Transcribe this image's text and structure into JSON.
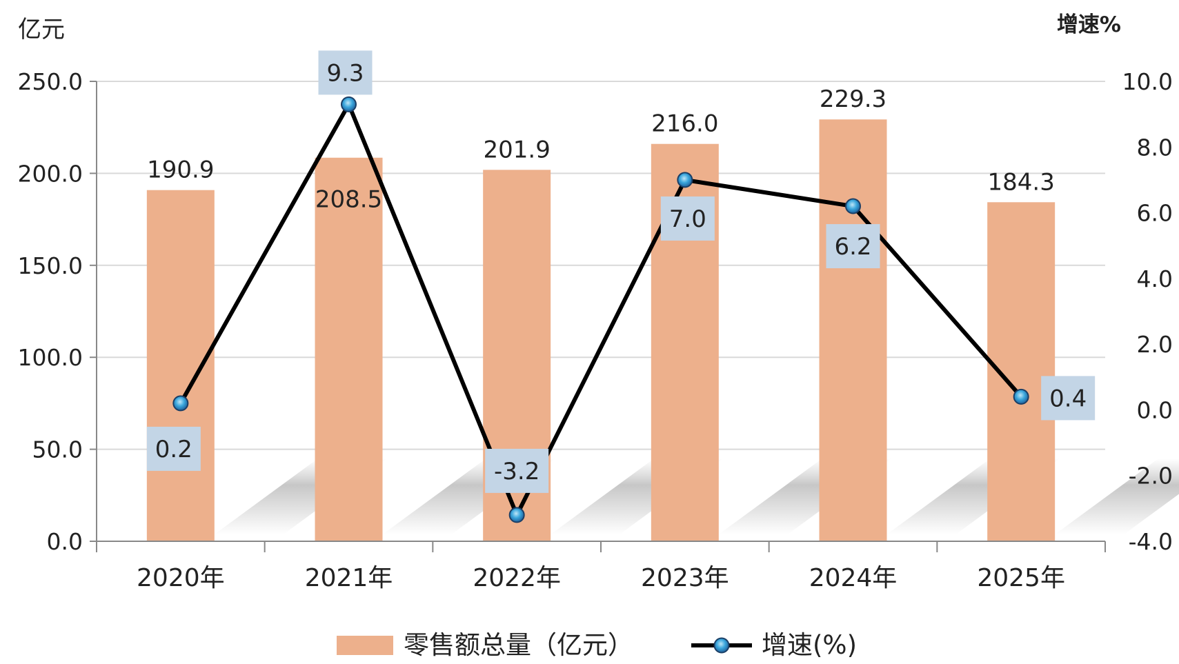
{
  "chart_data": {
    "type": "bar",
    "categories": [
      "2020年",
      "2021年",
      "2022年",
      "2023年",
      "2024年",
      "2025年"
    ],
    "series": [
      {
        "name": "零售额总量（亿元）",
        "type": "bar",
        "axis": "left",
        "color": "#EDB08C",
        "values": [
          190.9,
          208.5,
          201.9,
          216.0,
          229.3,
          184.3
        ],
        "labels": [
          "190.9",
          "208.5",
          "201.9",
          "216.0",
          "229.3",
          "184.3"
        ]
      },
      {
        "name": "增速(%)",
        "type": "line",
        "axis": "right",
        "color": "#000000",
        "marker_color": "#2E9BD6",
        "values": [
          0.2,
          9.3,
          -3.2,
          7.0,
          6.2,
          0.4
        ],
        "labels": [
          "0.2",
          "9.3",
          "-3.2",
          "7.0",
          "6.2",
          "0.4"
        ]
      }
    ],
    "ylabel": "亿元",
    "y2label": "增速%",
    "ylim": [
      0,
      250
    ],
    "y2lim": [
      -4,
      10
    ],
    "yticks": [
      "0.0",
      "50.0",
      "100.0",
      "150.0",
      "200.0",
      "250.0"
    ],
    "y2ticks": [
      "-4.0",
      "-2.0",
      "0.0",
      "2.0",
      "4.0",
      "6.0",
      "8.0",
      "10.0"
    ],
    "grid": true,
    "legend": "bottom",
    "label_box_color": "#C3D5E6"
  }
}
